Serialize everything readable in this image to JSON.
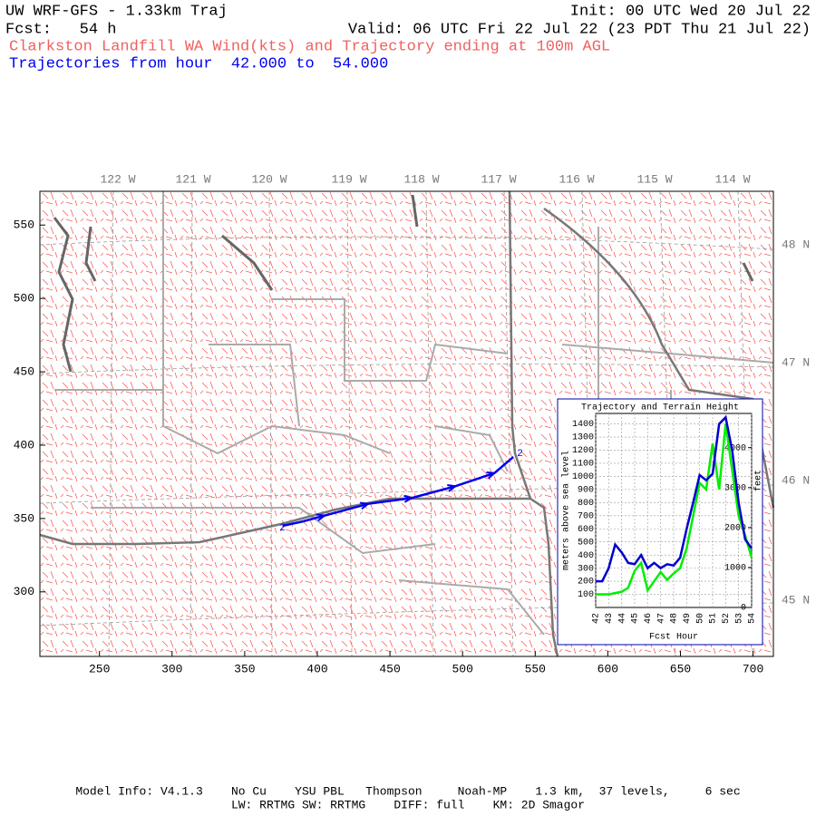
{
  "header": {
    "title": "UW WRF-GFS - 1.33km Traj",
    "init": "Init: 00 UTC Wed 20 Jul 22",
    "fcst": "Fcst:   54 h",
    "valid": "Valid: 06 UTC Fri 22 Jul 22 (23 PDT Thu 21 Jul 22)",
    "subtitle": "Clarkston Landfill WA Wind(kts) and Trajectory ending at 100m AGL",
    "hours": "Trajectories from hour  42.000 to  54.000"
  },
  "map": {
    "xlim": [
      209,
      714
    ],
    "ylim": [
      256,
      573
    ],
    "xticks": [
      250,
      300,
      350,
      400,
      450,
      500,
      550,
      600,
      650,
      700
    ],
    "yticks": [
      300,
      350,
      400,
      450,
      500,
      550
    ],
    "lon_labels": [
      "122 W",
      "121 W",
      "120 W",
      "119 W",
      "118 W",
      "117 W",
      "116 W",
      "115 W",
      "114 W"
    ],
    "lat_labels": [
      "48 N",
      "47 N",
      "46 N",
      "45 N"
    ],
    "trajectory": {
      "color": "#0000ee",
      "label": "2",
      "x": [
        376,
        390,
        405,
        420,
        435,
        450,
        465,
        480,
        495,
        510,
        522,
        535
      ],
      "y": [
        345,
        348,
        352,
        356,
        360,
        362,
        364,
        368,
        372,
        377,
        381,
        392
      ]
    }
  },
  "chart_data": {
    "type": "line",
    "title": "Trajectory and Terrain Height",
    "x_label": "Fcst Hour",
    "y_label": "meters above sea level",
    "y2_label": "feet",
    "x": [
      42,
      42.5,
      43,
      43.5,
      44,
      44.5,
      45,
      45.5,
      46,
      46.5,
      47,
      47.5,
      48,
      48.5,
      49,
      49.5,
      50,
      50.5,
      51,
      51.5,
      52,
      52.5,
      53,
      53.5,
      54
    ],
    "xlim": [
      42,
      54
    ],
    "xticks": [
      42,
      43,
      44,
      45,
      46,
      47,
      48,
      49,
      50,
      51,
      52,
      53,
      54
    ],
    "ylim": [
      0,
      1480
    ],
    "yticks": [
      100,
      200,
      300,
      400,
      500,
      600,
      700,
      800,
      900,
      1000,
      1100,
      1200,
      1300,
      1400
    ],
    "y2lim": [
      0,
      4856
    ],
    "y2ticks": [
      0,
      1000,
      2000,
      3000,
      4000
    ],
    "grid": true,
    "series": [
      {
        "name": "Terrain Height",
        "color": "#00ee00",
        "values": [
          100,
          100,
          100,
          110,
          120,
          150,
          280,
          340,
          130,
          200,
          270,
          210,
          260,
          300,
          450,
          700,
          950,
          900,
          1250,
          900,
          1400,
          1050,
          700,
          550,
          380
        ]
      },
      {
        "name": "Trajectory Height",
        "color": "#0000cc",
        "values": [
          200,
          200,
          300,
          480,
          420,
          340,
          330,
          400,
          300,
          340,
          300,
          330,
          320,
          380,
          600,
          800,
          1010,
          970,
          1020,
          1400,
          1450,
          1200,
          800,
          520,
          450
        ]
      }
    ]
  },
  "footer": {
    "line1": "Model Info: V4.1.3    No Cu    YSU PBL   Thompson     Noah-MP    1.3 km,  37 levels,     6 sec",
    "line2": "LW: RRTMG SW: RRTMG    DIFF: full    KM: 2D Smagor"
  }
}
